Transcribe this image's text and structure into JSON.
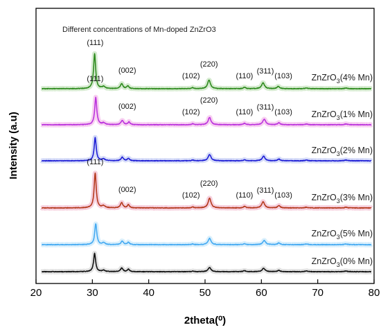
{
  "chart_data": {
    "type": "line",
    "title": "Different concentrations of Mn-doped ZnZrO3",
    "xlabel": "2theta(⁰)",
    "ylabel": "Intensity (a.u)",
    "xlim": [
      20,
      80
    ],
    "xticks": [
      20,
      30,
      40,
      50,
      60,
      70,
      80
    ],
    "yticks_shown": false,
    "grid": false,
    "series": [
      {
        "name": "ZnZrO3(4% Mn)",
        "base": "ZnZrO",
        "sub": "3",
        "suffix": "(4% Mn)",
        "color": "#2e8b1e",
        "glow": "#cfe8c8",
        "peaks": [
          [
            30.4,
            100
          ],
          [
            32.0,
            6
          ],
          [
            35.2,
            14
          ],
          [
            36.3,
            8
          ],
          [
            47.8,
            3
          ],
          [
            50.7,
            25
          ],
          [
            57.0,
            4
          ],
          [
            60.3,
            17
          ],
          [
            63.0,
            7
          ],
          [
            68.0,
            2
          ],
          [
            75.0,
            2
          ]
        ],
        "labels": [
          "(111)",
          "(002)",
          "(102)",
          "(220)",
          "(110)",
          "(311)",
          "(103)"
        ]
      },
      {
        "name": "ZnZrO3(1% Mn)",
        "base": "ZnZrO",
        "sub": "3",
        "suffix": "(1% Mn)",
        "color": "#bb33dd",
        "glow": "#f7c8ee",
        "peaks": [
          [
            30.6,
            78
          ],
          [
            32.0,
            5
          ],
          [
            35.3,
            12
          ],
          [
            36.5,
            8
          ],
          [
            47.8,
            3
          ],
          [
            50.8,
            21
          ],
          [
            57.0,
            4
          ],
          [
            60.5,
            16
          ],
          [
            63.1,
            6
          ],
          [
            68.0,
            2
          ],
          [
            75.0,
            2
          ]
        ],
        "labels": [
          "(111)",
          "(002)",
          "(102)",
          "(220)",
          "(110)",
          "(311)",
          "(103)"
        ]
      },
      {
        "name": "ZnZrO3(2% Mn)",
        "base": "ZnZrO",
        "sub": "3",
        "suffix": "(2% Mn)",
        "color": "#1f1fd6",
        "glow": "#cfd6f7",
        "peaks": [
          [
            30.5,
            66
          ],
          [
            32.0,
            5
          ],
          [
            35.3,
            10
          ],
          [
            36.4,
            7
          ],
          [
            47.8,
            2
          ],
          [
            50.8,
            18
          ],
          [
            57.0,
            3
          ],
          [
            60.4,
            13
          ],
          [
            63.1,
            5
          ],
          [
            68.0,
            2
          ],
          [
            75.0,
            2
          ]
        ],
        "labels": []
      },
      {
        "name": "ZnZrO3(3% Mn)",
        "base": "ZnZrO",
        "sub": "3",
        "suffix": "(3% Mn)",
        "color": "#b53a1e",
        "glow": "#f5c8d8",
        "peaks": [
          [
            30.5,
            100
          ],
          [
            32.0,
            6
          ],
          [
            35.2,
            15
          ],
          [
            36.4,
            9
          ],
          [
            47.8,
            3
          ],
          [
            50.8,
            28
          ],
          [
            57.0,
            4
          ],
          [
            60.3,
            18
          ],
          [
            63.1,
            7
          ],
          [
            68.0,
            2
          ],
          [
            75.0,
            2
          ]
        ],
        "labels": [
          "(111)",
          "(002)",
          "(102)",
          "(220)",
          "(110)",
          "(311)",
          "(103)"
        ]
      },
      {
        "name": "ZnZrO3(5% Mn)",
        "base": "ZnZrO",
        "sub": "3",
        "suffix": "(5% Mn)",
        "color": "#45aaf2",
        "glow": "#d2ecfb",
        "peaks": [
          [
            30.6,
            60
          ],
          [
            32.0,
            5
          ],
          [
            35.3,
            10
          ],
          [
            36.4,
            7
          ],
          [
            47.8,
            2
          ],
          [
            50.8,
            18
          ],
          [
            57.0,
            3
          ],
          [
            60.5,
            12
          ],
          [
            63.1,
            5
          ],
          [
            68.0,
            2
          ],
          [
            75.0,
            2
          ]
        ],
        "labels": []
      },
      {
        "name": "ZnZrO3(0% Mn)",
        "base": "ZnZrO",
        "sub": "3",
        "suffix": "(0% Mn)",
        "color": "#111111",
        "glow": "#dddddd",
        "peaks": [
          [
            30.4,
            52
          ],
          [
            32.0,
            4
          ],
          [
            35.2,
            10
          ],
          [
            36.4,
            7
          ],
          [
            47.8,
            2
          ],
          [
            50.8,
            12
          ],
          [
            57.0,
            3
          ],
          [
            60.4,
            10
          ],
          [
            63.1,
            4
          ],
          [
            68.0,
            2
          ],
          [
            75.0,
            2
          ]
        ],
        "labels": []
      }
    ]
  }
}
